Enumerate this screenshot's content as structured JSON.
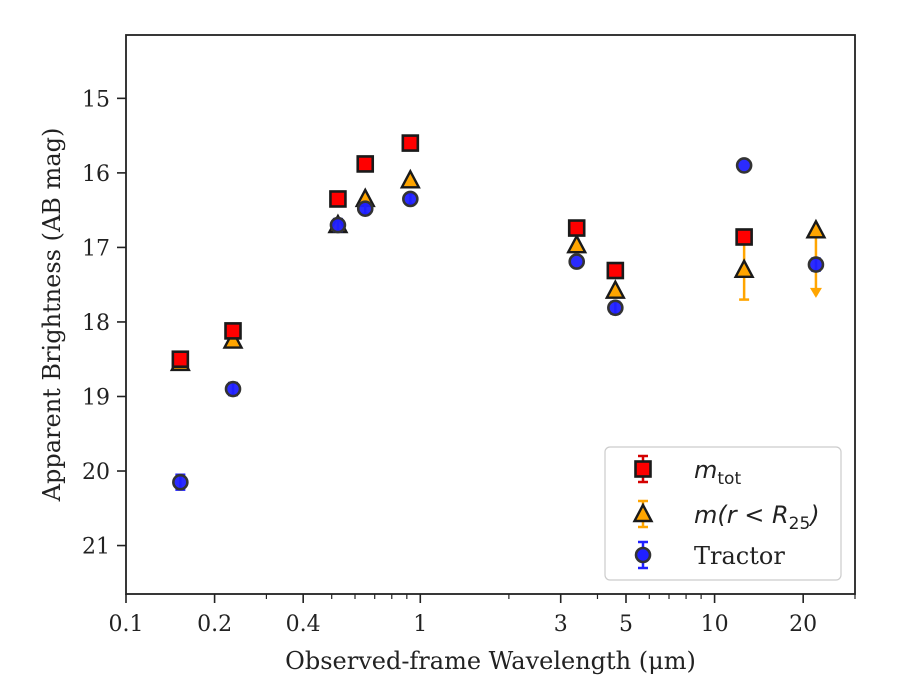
{
  "chart_data": {
    "type": "scatter",
    "title": "",
    "xlabel": "Observed-frame Wavelength (μm)",
    "ylabel": "Apparent Brightness (AB mag)",
    "xscale": "log",
    "xlim": [
      0.1,
      30
    ],
    "ylim": [
      21.65,
      14.15
    ],
    "y_inverted": true,
    "grid": false,
    "legend_position": "lower-right",
    "x_ticks": [
      {
        "value": 0.1,
        "label": "0.1"
      },
      {
        "value": 0.2,
        "label": "0.2"
      },
      {
        "value": 0.4,
        "label": "0.4"
      },
      {
        "value": 1,
        "label": "1"
      },
      {
        "value": 3,
        "label": "3"
      },
      {
        "value": 5,
        "label": "5"
      },
      {
        "value": 10,
        "label": "10"
      },
      {
        "value": 20,
        "label": "20"
      }
    ],
    "x_minor_ticks": [
      0.3,
      0.5,
      0.6,
      0.7,
      0.8,
      0.9,
      2,
      4,
      6,
      7,
      8,
      9,
      30
    ],
    "y_ticks": [
      {
        "value": 15,
        "label": "15"
      },
      {
        "value": 16,
        "label": "16"
      },
      {
        "value": 17,
        "label": "17"
      },
      {
        "value": 18,
        "label": "18"
      },
      {
        "value": 19,
        "label": "19"
      },
      {
        "value": 20,
        "label": "20"
      },
      {
        "value": 21,
        "label": "21"
      }
    ],
    "series": [
      {
        "name": "m_tot",
        "legend_label": {
          "main": "m",
          "sub": "tot"
        },
        "marker": "square",
        "color": "#ff0000",
        "edge_color": "#1a1a1a",
        "error_color": "#d40000",
        "points": [
          {
            "x": 0.153,
            "y": 18.5,
            "err": 0.08
          },
          {
            "x": 0.231,
            "y": 18.12,
            "err": 0.06
          },
          {
            "x": 0.525,
            "y": 16.35
          },
          {
            "x": 0.65,
            "y": 15.88
          },
          {
            "x": 0.925,
            "y": 15.6
          },
          {
            "x": 3.4,
            "y": 16.74
          },
          {
            "x": 4.6,
            "y": 17.31
          },
          {
            "x": 12.6,
            "y": 16.86
          }
        ]
      },
      {
        "name": "m(r < R_25)",
        "legend_label": {
          "main": "m(r < R",
          "sub": "25",
          "close": ")"
        },
        "marker": "triangle",
        "color": "#ffa500",
        "edge_color": "#1a1a1a",
        "error_color": "#ffa500",
        "points": [
          {
            "x": 0.153,
            "y": 18.55
          },
          {
            "x": 0.231,
            "y": 18.25
          },
          {
            "x": 0.525,
            "y": 16.7
          },
          {
            "x": 0.65,
            "y": 16.35
          },
          {
            "x": 0.925,
            "y": 16.1
          },
          {
            "x": 3.4,
            "y": 16.97
          },
          {
            "x": 4.6,
            "y": 17.58
          },
          {
            "x": 12.6,
            "y": 17.3,
            "err": 0.4
          },
          {
            "x": 22.1,
            "y": 16.77,
            "upper_limit_to": 17.65
          }
        ]
      },
      {
        "name": "Tractor",
        "legend_label": {
          "main": "Tractor"
        },
        "marker": "circle",
        "color": "#2020ff",
        "edge_color": "#333333",
        "error_color": "#2020ff",
        "points": [
          {
            "x": 0.153,
            "y": 20.15,
            "err": 0.1
          },
          {
            "x": 0.231,
            "y": 18.9,
            "err": 0.08
          },
          {
            "x": 0.525,
            "y": 16.7,
            "err": 0.08
          },
          {
            "x": 0.65,
            "y": 16.48,
            "err": 0.07
          },
          {
            "x": 0.925,
            "y": 16.35,
            "err": 0.07
          },
          {
            "x": 3.4,
            "y": 17.19
          },
          {
            "x": 4.6,
            "y": 17.81,
            "err": 0.08
          },
          {
            "x": 12.6,
            "y": 15.9
          },
          {
            "x": 22.1,
            "y": 17.23,
            "err": 0.08
          }
        ]
      }
    ]
  }
}
